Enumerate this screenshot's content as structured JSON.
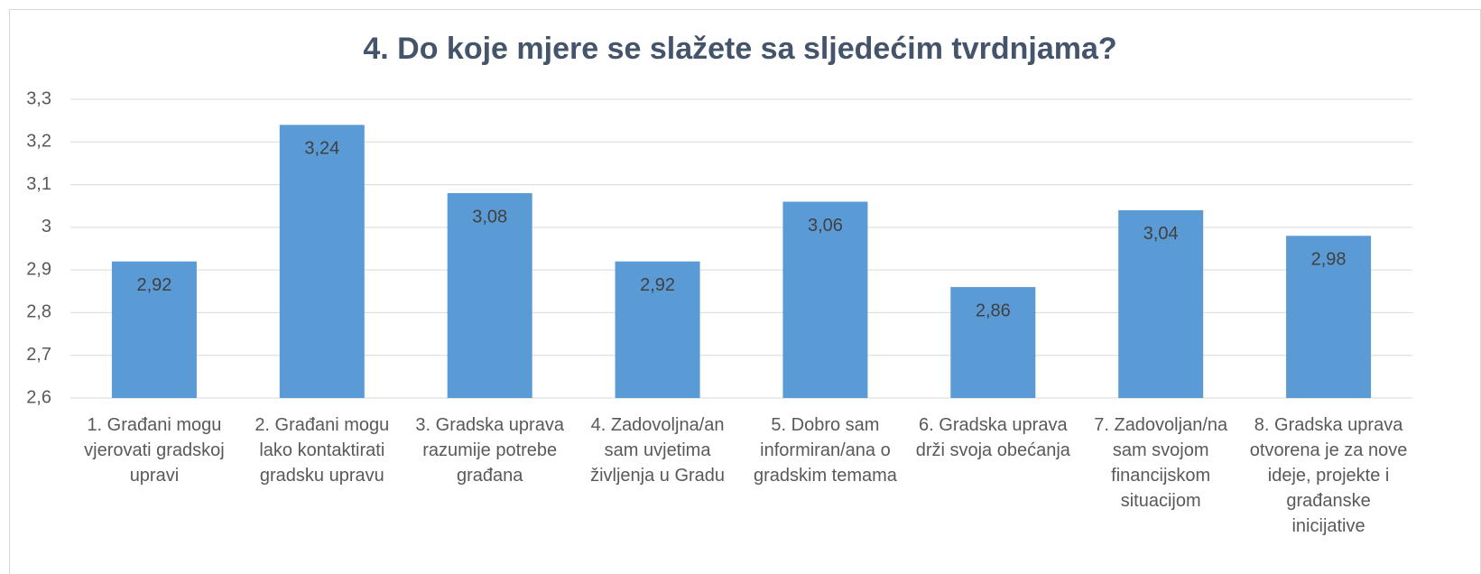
{
  "chart_data": {
    "type": "bar",
    "title": "4. Do koje mjere se slažete sa sljedećim tvrdnjama?",
    "categories": [
      "1. Građani mogu vjerovati gradskoj upravi",
      "2. Građani mogu lako kontaktirati gradsku upravu",
      "3. Gradska uprava razumije potrebe građana",
      "4. Zadovoljna/an sam uvjetima življenja u Gradu",
      "5. Dobro sam informiran/ana o gradskim temama",
      "6. Gradska uprava drži svoja obećanja",
      "7. Zadovoljan/na sam svojom financijskom situacijom",
      "8. Gradska uprava otvorena je za nove ideje, projekte i građanske inicijative"
    ],
    "values": [
      2.92,
      3.24,
      3.08,
      2.92,
      3.06,
      2.86,
      3.04,
      2.98
    ],
    "value_labels": [
      "2,92",
      "3,24",
      "3,08",
      "2,92",
      "3,06",
      "2,86",
      "3,04",
      "2,98"
    ],
    "color": "#5b9bd5",
    "ylim": [
      2.6,
      3.3
    ],
    "yticks": [
      {
        "value": 2.6,
        "label": "2,6"
      },
      {
        "value": 2.7,
        "label": "2,7"
      },
      {
        "value": 2.8,
        "label": "2,8"
      },
      {
        "value": 2.9,
        "label": "2,9"
      },
      3,
      {
        "value": 3.1,
        "label": "3,1"
      },
      {
        "value": 3.2,
        "label": "3,2"
      },
      {
        "value": 3.3,
        "label": "3,3"
      }
    ],
    "grid": true
  }
}
